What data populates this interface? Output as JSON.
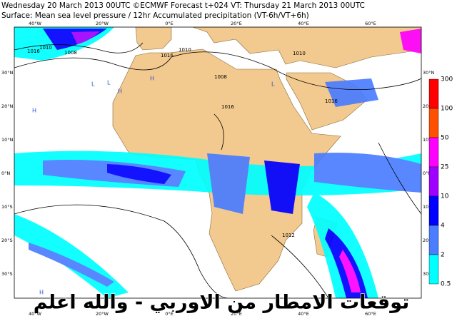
{
  "header": {
    "line1": "Wednesday 20 March 2013 00UTC ©ECMWF Forecast t+024 VT: Thursday 21 March 2013 00UTC",
    "line2": "Surface: Mean sea level pressure / 12hr Accumulated precipitation (VT-6h/VT+6h)"
  },
  "map": {
    "lon_labels": [
      "40°W",
      "20°W",
      "0°E",
      "20°E",
      "40°E",
      "60°E"
    ],
    "lat_labels": [
      "30°N",
      "20°N",
      "10°N",
      "0°N",
      "10°S",
      "20°S",
      "30°S"
    ],
    "isobar_labels": [
      "1016",
      "1010",
      "1008",
      "1016",
      "1010",
      "1008",
      "1010",
      "1016",
      "1016",
      "1012"
    ],
    "pressure_centres": [
      "L",
      "L",
      "H",
      "H",
      "H",
      "L",
      "H"
    ]
  },
  "colorbar": {
    "labels": [
      "300",
      "100",
      "50",
      "25",
      "10",
      "4",
      "2",
      "0.5"
    ],
    "colors": [
      "#ff0000",
      "#ff5000",
      "#ff00ff",
      "#a000ff",
      "#0000ff",
      "#4a7dff",
      "#00ffff"
    ]
  },
  "overlay_text": "توقعات الامطار من الاوربي - والله اعلم"
}
